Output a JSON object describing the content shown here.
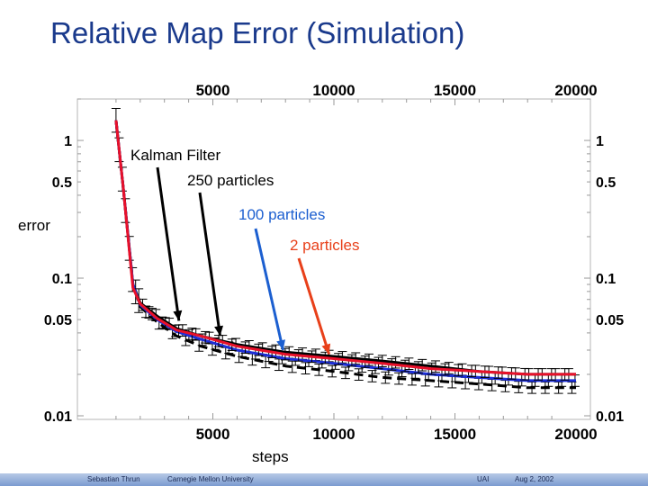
{
  "slide": {
    "title": "Relative Map Error (Simulation)"
  },
  "footer": {
    "author": "Sebastian Thrun",
    "affiliation": "Carnegie Mellon University",
    "venue": "UAI",
    "date": "Aug 2, 2002"
  },
  "chart_data": {
    "type": "line",
    "title": "",
    "xlabel": "steps",
    "ylabel": "error",
    "xlim": [
      0,
      20000
    ],
    "ylim": [
      0.01,
      2
    ],
    "y_scale": "log",
    "x_ticks": [
      "5000",
      "10000",
      "15000",
      "20000"
    ],
    "x_tick_values": [
      5000,
      10000,
      15000,
      20000
    ],
    "y_ticks": [
      "1",
      "0.5",
      "0.1",
      "0.05",
      "0.01"
    ],
    "y_tick_values": [
      1,
      0.5,
      0.1,
      0.05,
      0.01
    ],
    "error_bars": true,
    "series": [
      {
        "key": "kalman",
        "color": "#000000",
        "width": 3,
        "points": [
          [
            1000,
            1.4
          ],
          [
            1300,
            0.45
          ],
          [
            1700,
            0.09
          ],
          [
            2000,
            0.066
          ],
          [
            2700,
            0.053
          ],
          [
            3500,
            0.043
          ],
          [
            4500,
            0.038
          ],
          [
            6000,
            0.033
          ],
          [
            8000,
            0.029
          ],
          [
            10000,
            0.027
          ],
          [
            12000,
            0.025
          ],
          [
            14000,
            0.023
          ],
          [
            16000,
            0.021
          ],
          [
            18000,
            0.02
          ],
          [
            20000,
            0.02
          ]
        ]
      },
      {
        "key": "250_particles",
        "color": "#000000",
        "width": 3,
        "dashed": true,
        "points": [
          [
            1000,
            1.4
          ],
          [
            1300,
            0.45
          ],
          [
            1700,
            0.09
          ],
          [
            2000,
            0.062
          ],
          [
            2700,
            0.048
          ],
          [
            3500,
            0.038
          ],
          [
            4500,
            0.032
          ],
          [
            6000,
            0.027
          ],
          [
            8000,
            0.023
          ],
          [
            10000,
            0.021
          ],
          [
            12000,
            0.019
          ],
          [
            14000,
            0.018
          ],
          [
            16000,
            0.017
          ],
          [
            18000,
            0.016
          ],
          [
            20000,
            0.016
          ]
        ]
      },
      {
        "key": "100_particles",
        "color": "#1c2ed8",
        "width": 3,
        "points": [
          [
            1000,
            1.4
          ],
          [
            1300,
            0.45
          ],
          [
            1700,
            0.09
          ],
          [
            2000,
            0.064
          ],
          [
            2700,
            0.05
          ],
          [
            3500,
            0.041
          ],
          [
            4500,
            0.036
          ],
          [
            6000,
            0.03
          ],
          [
            8000,
            0.026
          ],
          [
            10000,
            0.024
          ],
          [
            12000,
            0.022
          ],
          [
            14000,
            0.02
          ],
          [
            16000,
            0.019
          ],
          [
            18000,
            0.018
          ],
          [
            20000,
            0.018
          ]
        ]
      },
      {
        "key": "2_particles",
        "color": "#e8102a",
        "width": 3,
        "points": [
          [
            1000,
            1.4
          ],
          [
            1300,
            0.45
          ],
          [
            1700,
            0.085
          ],
          [
            2000,
            0.065
          ],
          [
            2700,
            0.051
          ],
          [
            3500,
            0.042
          ],
          [
            4500,
            0.038
          ],
          [
            6000,
            0.032
          ],
          [
            8000,
            0.028
          ],
          [
            10000,
            0.026
          ],
          [
            12000,
            0.024
          ],
          [
            14000,
            0.022
          ],
          [
            16000,
            0.021
          ],
          [
            18000,
            0.02
          ],
          [
            20000,
            0.02
          ]
        ]
      }
    ],
    "annotations": [
      {
        "text": "Kalman Filter",
        "color": "#000000",
        "target_x": 3600,
        "target_y": 0.049
      },
      {
        "text": "250 particles",
        "color": "#000000",
        "target_x": 5300,
        "target_y": 0.038
      },
      {
        "text": "100 particles",
        "color": "#1c5fd0",
        "target_x": 7900,
        "target_y": 0.03
      },
      {
        "text": "2 particles",
        "color": "#e8401a",
        "target_x": 9800,
        "target_y": 0.028
      }
    ]
  }
}
